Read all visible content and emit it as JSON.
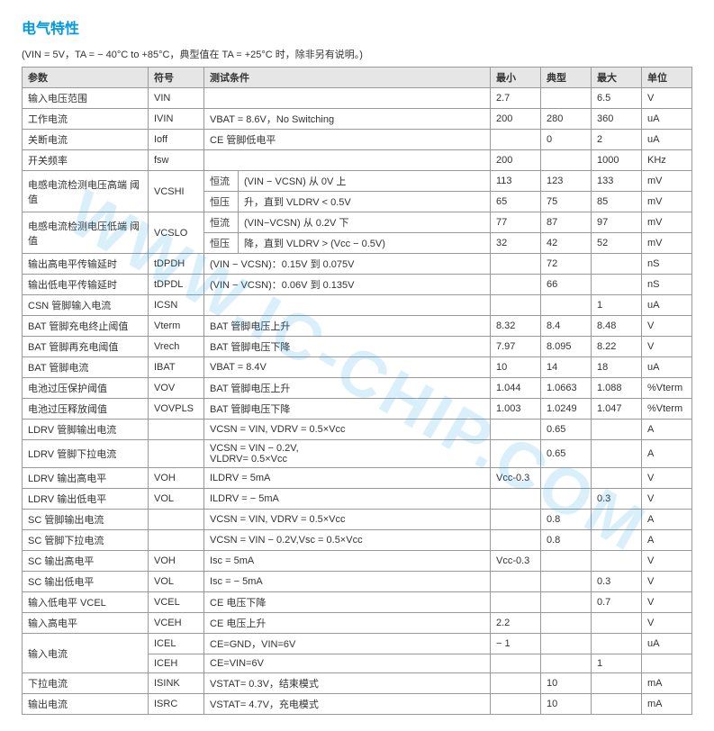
{
  "title": "电气特性",
  "subnote": "(VIN = 5V，TA = − 40°C to +85°C，典型值在  TA = +25°C  时，除非另有说明。)",
  "watermark": "WWW.IC-CHIP.COM",
  "headers": {
    "param": "参数",
    "symbol": "符号",
    "cond": "测试条件",
    "min": "最小",
    "typ": "典型",
    "max": "最大",
    "unit": "单位"
  },
  "rows": [
    {
      "param": "输入电压范围",
      "sym": "VIN",
      "cond": "",
      "min": "2.7",
      "typ": "",
      "max": "6.5",
      "unit": "V"
    },
    {
      "param": "工作电流",
      "sym": "IVIN",
      "cond": "VBAT = 8.6V，No Switching",
      "min": "200",
      "typ": "280",
      "max": "360",
      "unit": "uA"
    },
    {
      "param": "关断电流",
      "sym": "Ioff",
      "cond": "CE 管脚低电平",
      "min": "",
      "typ": "0",
      "max": "2",
      "unit": "uA"
    },
    {
      "param": "开关频率",
      "sym": "fsw",
      "cond": "",
      "min": "200",
      "typ": "",
      "max": "1000",
      "unit": "KHz"
    },
    {
      "type": "grp2",
      "param": "电感电流检测电压高端 阈值",
      "sym": "VCSHI",
      "sub": [
        {
          "a": "恒流",
          "b": "(VIN − VCSN)  从  0V  上",
          "min": "113",
          "typ": "123",
          "max": "133",
          "unit": "mV"
        },
        {
          "a": "恒压",
          "b": "升，直到 VLDRV  < 0.5V",
          "min": "65",
          "typ": "75",
          "max": "85",
          "unit": "mV"
        }
      ]
    },
    {
      "type": "grp2",
      "param": "电感电流检测电压低端 阈值",
      "sym": "VCSLO",
      "sub": [
        {
          "a": "恒流",
          "b": "(VIN−VCSN) 从 0.2V 下",
          "min": "77",
          "typ": "87",
          "max": "97",
          "unit": "mV"
        },
        {
          "a": "恒压",
          "b": "降，直到 VLDRV >  (Vcc − 0.5V)",
          "min": "32",
          "typ": "42",
          "max": "52",
          "unit": "mV"
        }
      ]
    },
    {
      "param": "输出高电平传输延时",
      "sym": "tDPDH",
      "cond": "(VIN − VCSN)：0.15V 到 0.075V",
      "min": "",
      "typ": "72",
      "max": "",
      "unit": "nS"
    },
    {
      "param": "输出低电平传输延时",
      "sym": "tDPDL",
      "cond": "(VIN − VCSN)：0.06V 到 0.135V",
      "min": "",
      "typ": "66",
      "max": "",
      "unit": "nS"
    },
    {
      "param": "CSN 管脚输入电流",
      "sym": "ICSN",
      "cond": "",
      "min": "",
      "typ": "",
      "max": "1",
      "unit": "uA"
    },
    {
      "param": "BAT 管脚充电终止阈值",
      "sym": "Vterm",
      "cond": "BAT 管脚电压上升",
      "min": "8.32",
      "typ": "8.4",
      "max": "8.48",
      "unit": "V"
    },
    {
      "param": "BAT 管脚再充电阈值",
      "sym": "Vrech",
      "cond": "BAT 管脚电压下降",
      "min": "7.97",
      "typ": "8.095",
      "max": "8.22",
      "unit": "V"
    },
    {
      "param": "BAT 管脚电流",
      "sym": "IBAT",
      "cond": "VBAT = 8.4V",
      "min": "10",
      "typ": "14",
      "max": "18",
      "unit": "uA"
    },
    {
      "param": "电池过压保护阈值",
      "sym": "VOV",
      "cond": "BAT 管脚电压上升",
      "min": "1.044",
      "typ": "1.0663",
      "max": "1.088",
      "unit": "%Vterm"
    },
    {
      "param": "电池过压释放阈值",
      "sym": "VOVPLS",
      "cond": "BAT 管脚电压下降",
      "min": "1.003",
      "typ": "1.0249",
      "max": "1.047",
      "unit": "%Vterm"
    },
    {
      "param": "LDRV 管脚输出电流",
      "sym": "",
      "cond": "VCSN = VIN, VDRV = 0.5×Vcc",
      "min": "",
      "typ": "0.65",
      "max": "",
      "unit": "A"
    },
    {
      "param": "LDRV 管脚下拉电流",
      "sym": "",
      "cond": "VCSN = VIN − 0.2V,\nVLDRV= 0.5×Vcc",
      "min": "",
      "typ": "0.65",
      "max": "",
      "unit": "A",
      "tall": true
    },
    {
      "param": "LDRV 输出高电平",
      "sym": "VOH",
      "cond": "ILDRV = 5mA",
      "min": "Vcc-0.3",
      "typ": "",
      "max": "",
      "unit": "V"
    },
    {
      "param": "LDRV 输出低电平",
      "sym": "VOL",
      "cond": "ILDRV = − 5mA",
      "min": "",
      "typ": "",
      "max": "0.3",
      "unit": "V"
    },
    {
      "param": "SC 管脚输出电流",
      "sym": "",
      "cond": "VCSN = VIN, VDRV = 0.5×Vcc",
      "min": "",
      "typ": "0.8",
      "max": "",
      "unit": "A"
    },
    {
      "param": "SC 管脚下拉电流",
      "sym": "",
      "cond": "VCSN = VIN − 0.2V,Vsc = 0.5×Vcc",
      "min": "",
      "typ": "0.8",
      "max": "",
      "unit": "A"
    },
    {
      "param": "SC 输出高电平",
      "sym": "VOH",
      "cond": "Isc = 5mA",
      "min": "Vcc-0.3",
      "typ": "",
      "max": "",
      "unit": "V"
    },
    {
      "param": "SC 输出低电平",
      "sym": "VOL",
      "cond": "Isc = − 5mA",
      "min": "",
      "typ": "",
      "max": "0.3",
      "unit": "V"
    },
    {
      "param": "输入低电平 VCEL",
      "sym": "VCEL",
      "cond": "CE 电压下降",
      "min": "",
      "typ": "",
      "max": "0.7",
      "unit": "V"
    },
    {
      "param": "输入高电平",
      "sym": "VCEH",
      "cond": "CE 电压上升",
      "min": "2.2",
      "typ": "",
      "max": "",
      "unit": "V"
    },
    {
      "type": "grp2p",
      "param": "输入电流",
      "sub": [
        {
          "sym": "ICEL",
          "cond": "CE=GND，VIN=6V",
          "min": "− 1",
          "typ": "",
          "max": "",
          "unit": "uA"
        },
        {
          "sym": "ICEH",
          "cond": "CE=VIN=6V",
          "min": "",
          "typ": "",
          "max": "1",
          "unit": ""
        }
      ]
    },
    {
      "param": "下拉电流",
      "sym": "ISINK",
      "cond": "VSTAT= 0.3V，结束模式",
      "min": "",
      "typ": "10",
      "max": "",
      "unit": "mA"
    },
    {
      "param": "输出电流",
      "sym": "ISRC",
      "cond": "VSTAT= 4.7V，充电模式",
      "min": "",
      "typ": "10",
      "max": "",
      "unit": "mA"
    }
  ]
}
